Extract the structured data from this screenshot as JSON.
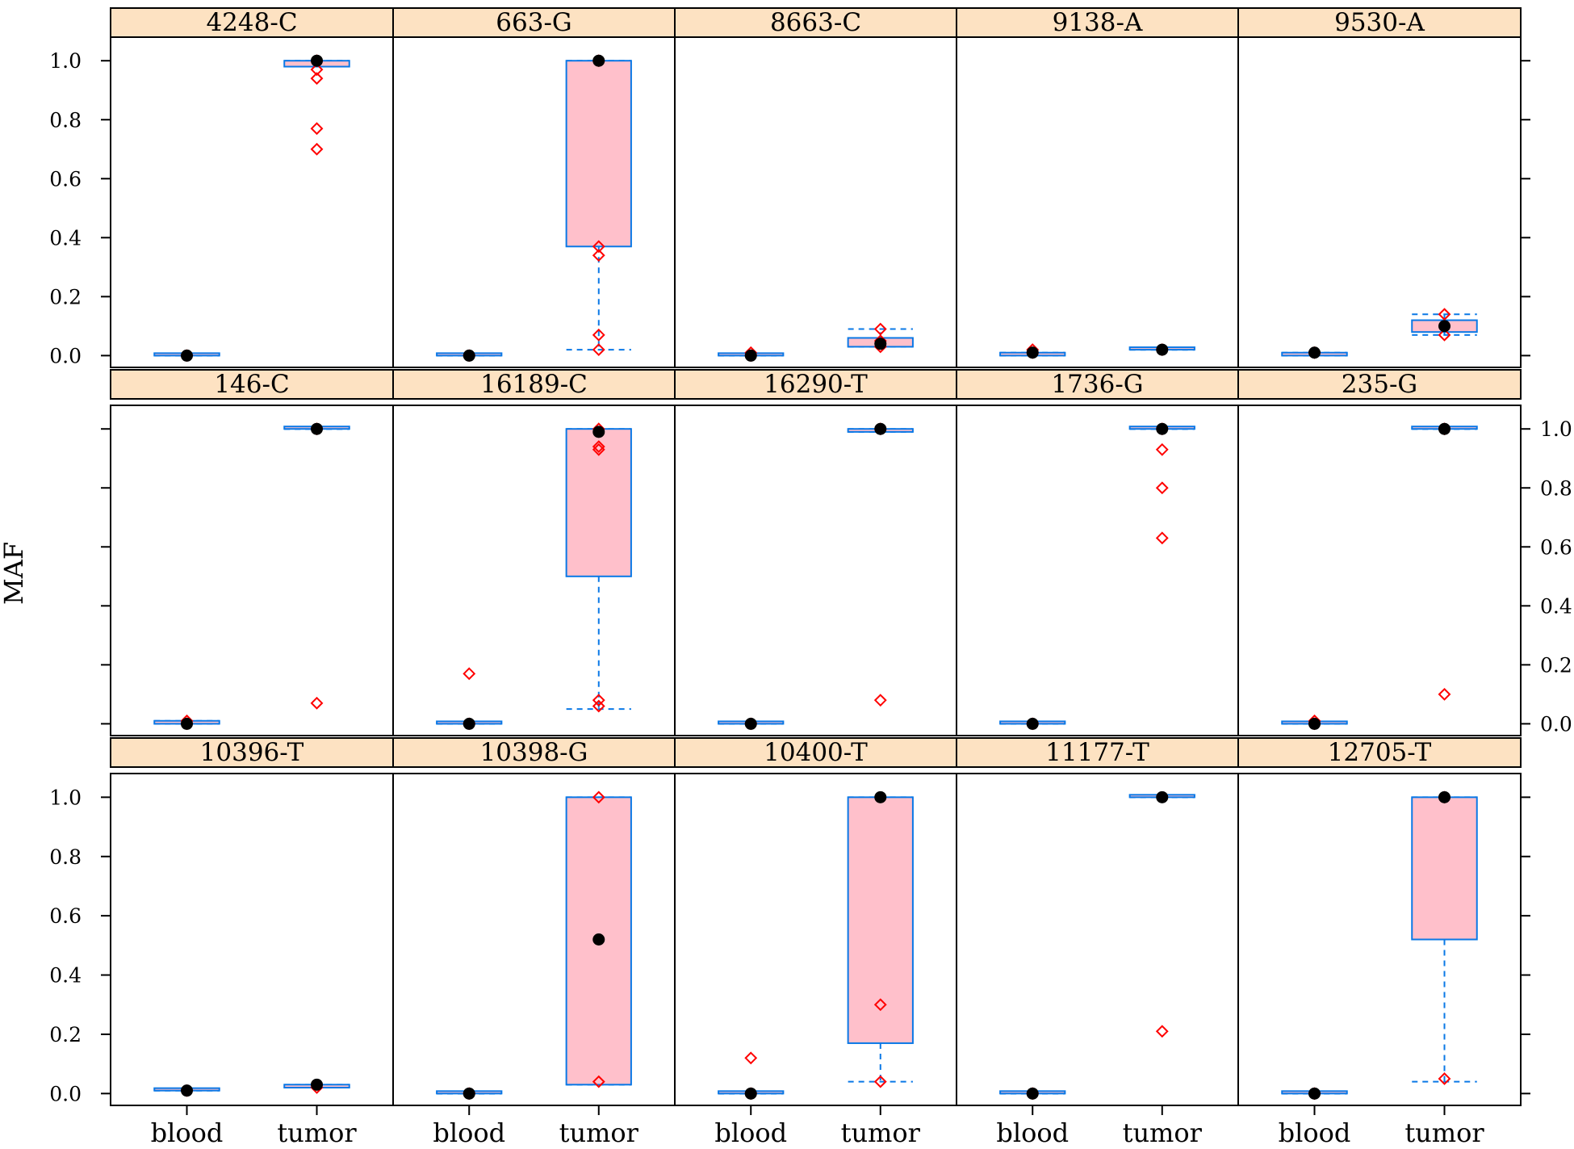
{
  "colors": {
    "strip_bg": "#fde2c2",
    "box_fill": "#ffc0cb",
    "box_line": "#0a78e6",
    "outlier": "#ff0000",
    "median_dot": "#000000",
    "frame": "#000000"
  },
  "chart_data": {
    "type": "box",
    "layout": {
      "rows": 3,
      "cols": 5
    },
    "ylabel": "MAF",
    "categories": [
      "blood",
      "tumor"
    ],
    "ylim": [
      -0.04,
      1.08
    ],
    "yticks": [
      "0.0",
      "0.2",
      "0.4",
      "0.6",
      "0.8",
      "1.0"
    ],
    "y_axis_labels": "left on rows 1 and 3, right on row 2",
    "panels": [
      {
        "title": "4248-C",
        "boxes": [
          {
            "category": "blood",
            "min": 0.0,
            "q1": 0.0,
            "median": 0.0,
            "q3": 0.0,
            "max": 0.0,
            "outliers": [
              0.0
            ]
          },
          {
            "category": "tumor",
            "min": 0.98,
            "q1": 0.98,
            "median": 1.0,
            "q3": 1.0,
            "max": 1.0,
            "outliers": [
              0.7,
              0.77,
              0.94,
              0.97,
              1.0
            ]
          }
        ]
      },
      {
        "title": "663-G",
        "boxes": [
          {
            "category": "blood",
            "min": 0.0,
            "q1": 0.0,
            "median": 0.0,
            "q3": 0.0,
            "max": 0.0,
            "outliers": [
              0.0
            ]
          },
          {
            "category": "tumor",
            "min": 0.02,
            "q1": 0.37,
            "median": 1.0,
            "q3": 1.0,
            "max": 1.0,
            "outliers": [
              0.02,
              0.07,
              0.34,
              0.37,
              1.0
            ]
          }
        ]
      },
      {
        "title": "8663-C",
        "boxes": [
          {
            "category": "blood",
            "min": 0.0,
            "q1": 0.0,
            "median": 0.0,
            "q3": 0.0,
            "max": 0.0,
            "outliers": [
              0.0,
              0.01
            ]
          },
          {
            "category": "tumor",
            "min": 0.03,
            "q1": 0.03,
            "median": 0.04,
            "q3": 0.06,
            "max": 0.09,
            "outliers": [
              0.03,
              0.05,
              0.09
            ]
          }
        ]
      },
      {
        "title": "9138-A",
        "boxes": [
          {
            "category": "blood",
            "min": 0.0,
            "q1": 0.0,
            "median": 0.01,
            "q3": 0.01,
            "max": 0.01,
            "outliers": [
              0.01,
              0.02
            ]
          },
          {
            "category": "tumor",
            "min": 0.02,
            "q1": 0.02,
            "median": 0.02,
            "q3": 0.02,
            "max": 0.02,
            "outliers": [
              0.02
            ]
          }
        ]
      },
      {
        "title": "9530-A",
        "boxes": [
          {
            "category": "blood",
            "min": 0.0,
            "q1": 0.0,
            "median": 0.01,
            "q3": 0.01,
            "max": 0.01,
            "outliers": [
              0.01
            ]
          },
          {
            "category": "tumor",
            "min": 0.07,
            "q1": 0.08,
            "median": 0.1,
            "q3": 0.12,
            "max": 0.14,
            "outliers": [
              0.07,
              0.14
            ]
          }
        ]
      },
      {
        "title": "146-C",
        "boxes": [
          {
            "category": "blood",
            "min": 0.0,
            "q1": 0.0,
            "median": 0.0,
            "q3": 0.01,
            "max": 0.01,
            "outliers": [
              0.0,
              0.01
            ]
          },
          {
            "category": "tumor",
            "min": 1.0,
            "q1": 1.0,
            "median": 1.0,
            "q3": 1.0,
            "max": 1.0,
            "outliers": [
              0.07,
              1.0
            ]
          }
        ]
      },
      {
        "title": "16189-C",
        "boxes": [
          {
            "category": "blood",
            "min": 0.0,
            "q1": 0.0,
            "median": 0.0,
            "q3": 0.0,
            "max": 0.0,
            "outliers": [
              0.0,
              0.17
            ]
          },
          {
            "category": "tumor",
            "min": 0.05,
            "q1": 0.5,
            "median": 0.99,
            "q3": 1.0,
            "max": 1.0,
            "outliers": [
              0.06,
              0.08,
              0.93,
              0.94,
              1.0
            ]
          }
        ]
      },
      {
        "title": "16290-T",
        "boxes": [
          {
            "category": "blood",
            "min": 0.0,
            "q1": 0.0,
            "median": 0.0,
            "q3": 0.0,
            "max": 0.0,
            "outliers": [
              0.0
            ]
          },
          {
            "category": "tumor",
            "min": 0.99,
            "q1": 0.99,
            "median": 1.0,
            "q3": 1.0,
            "max": 1.0,
            "outliers": [
              0.08,
              1.0
            ]
          }
        ]
      },
      {
        "title": "1736-G",
        "boxes": [
          {
            "category": "blood",
            "min": 0.0,
            "q1": 0.0,
            "median": 0.0,
            "q3": 0.0,
            "max": 0.0,
            "outliers": [
              0.0
            ]
          },
          {
            "category": "tumor",
            "min": 1.0,
            "q1": 1.0,
            "median": 1.0,
            "q3": 1.0,
            "max": 1.0,
            "outliers": [
              0.63,
              0.8,
              0.93,
              1.0
            ]
          }
        ]
      },
      {
        "title": "235-G",
        "boxes": [
          {
            "category": "blood",
            "min": 0.0,
            "q1": 0.0,
            "median": 0.0,
            "q3": 0.0,
            "max": 0.0,
            "outliers": [
              0.0,
              0.01
            ]
          },
          {
            "category": "tumor",
            "min": 1.0,
            "q1": 1.0,
            "median": 1.0,
            "q3": 1.0,
            "max": 1.0,
            "outliers": [
              0.1,
              1.0
            ]
          }
        ]
      },
      {
        "title": "10396-T",
        "boxes": [
          {
            "category": "blood",
            "min": 0.01,
            "q1": 0.01,
            "median": 0.01,
            "q3": 0.01,
            "max": 0.01,
            "outliers": [
              0.01
            ]
          },
          {
            "category": "tumor",
            "min": 0.02,
            "q1": 0.02,
            "median": 0.03,
            "q3": 0.03,
            "max": 0.03,
            "outliers": [
              0.02
            ]
          }
        ]
      },
      {
        "title": "10398-G",
        "boxes": [
          {
            "category": "blood",
            "min": 0.0,
            "q1": 0.0,
            "median": 0.0,
            "q3": 0.0,
            "max": 0.0,
            "outliers": [
              0.0
            ]
          },
          {
            "category": "tumor",
            "min": 0.03,
            "q1": 0.03,
            "median": 0.52,
            "q3": 1.0,
            "max": 1.0,
            "outliers": [
              0.04,
              1.0
            ]
          }
        ]
      },
      {
        "title": "10400-T",
        "boxes": [
          {
            "category": "blood",
            "min": 0.0,
            "q1": 0.0,
            "median": 0.0,
            "q3": 0.0,
            "max": 0.0,
            "outliers": [
              0.0,
              0.12
            ]
          },
          {
            "category": "tumor",
            "min": 0.04,
            "q1": 0.17,
            "median": 1.0,
            "q3": 1.0,
            "max": 1.0,
            "outliers": [
              0.04,
              0.3
            ]
          }
        ]
      },
      {
        "title": "11177-T",
        "boxes": [
          {
            "category": "blood",
            "min": 0.0,
            "q1": 0.0,
            "median": 0.0,
            "q3": 0.0,
            "max": 0.0,
            "outliers": [
              0.0
            ]
          },
          {
            "category": "tumor",
            "min": 1.0,
            "q1": 1.0,
            "median": 1.0,
            "q3": 1.0,
            "max": 1.0,
            "outliers": [
              0.21
            ]
          }
        ]
      },
      {
        "title": "12705-T",
        "boxes": [
          {
            "category": "blood",
            "min": 0.0,
            "q1": 0.0,
            "median": 0.0,
            "q3": 0.0,
            "max": 0.0,
            "outliers": [
              0.0
            ]
          },
          {
            "category": "tumor",
            "min": 0.04,
            "q1": 0.52,
            "median": 1.0,
            "q3": 1.0,
            "max": 1.0,
            "outliers": [
              0.05,
              1.0
            ]
          }
        ]
      }
    ]
  }
}
